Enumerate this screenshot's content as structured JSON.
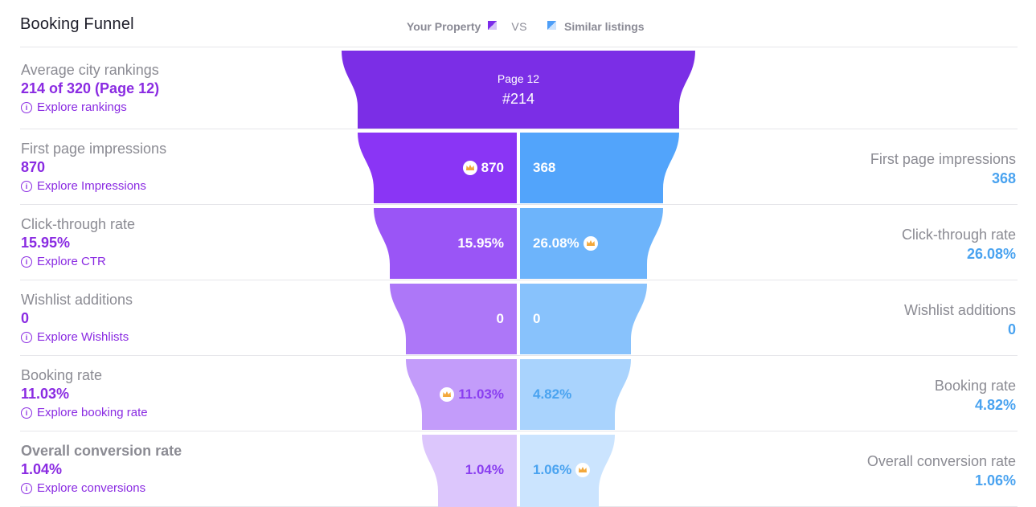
{
  "title": "Booking Funnel",
  "legend": {
    "your_property": "Your Property",
    "vs": "VS",
    "similar": "Similar listings"
  },
  "colors": {
    "accent_purple": "#8a2be2",
    "accent_blue": "#4aa3f0"
  },
  "top": {
    "page": "Page 12",
    "rank": "#214"
  },
  "rows": [
    {
      "label": "Average city rankings",
      "value": "214 of 320 (Page 12)",
      "link": "Explore rankings"
    },
    {
      "label": "First page impressions",
      "value": "870",
      "link": "Explore Impressions",
      "left": "870",
      "right": "368",
      "right_label": "First page impressions",
      "right_value": "368"
    },
    {
      "label": "Click-through rate",
      "value": "15.95%",
      "link": "Explore CTR",
      "left": "15.95%",
      "right": "26.08%",
      "right_label": "Click-through rate",
      "right_value": "26.08%"
    },
    {
      "label": "Wishlist additions",
      "value": "0",
      "link": "Explore Wishlists",
      "left": "0",
      "right": "0",
      "right_label": "Wishlist additions",
      "right_value": "0"
    },
    {
      "label": "Booking rate",
      "value": "11.03%",
      "link": "Explore booking rate",
      "left": "11.03%",
      "right": "4.82%",
      "right_label": "Booking rate",
      "right_value": "4.82%"
    },
    {
      "label": "Overall conversion rate",
      "value": "1.04%",
      "link": "Explore conversions",
      "left": "1.04%",
      "right": "1.06%",
      "right_label": "Overall conversion rate",
      "right_value": "1.06%"
    }
  ],
  "icons": {
    "info": "info-icon",
    "winner": "crown-icon",
    "legend_purple": "purple-swatch",
    "legend_blue": "blue-swatch"
  }
}
